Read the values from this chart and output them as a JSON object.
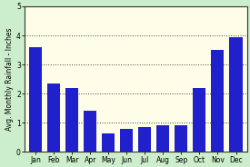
{
  "months": [
    "Jan",
    "Feb",
    "Mar",
    "Apr",
    "May",
    "Jun",
    "Jul",
    "Aug",
    "Sep",
    "Oct",
    "Nov",
    "Dec"
  ],
  "values": [
    3.6,
    2.35,
    2.2,
    1.4,
    0.65,
    0.8,
    0.85,
    0.9,
    0.9,
    2.2,
    3.5,
    3.95
  ],
  "bar_color": "#2020CC",
  "ylabel": "Avg. Monthly Rainfall - Inches",
  "ylim": [
    0,
    5
  ],
  "yticks": [
    0,
    1,
    2,
    3,
    4,
    5
  ],
  "plot_bg_color": "#FEFEE8",
  "fig_bg_color": "#CCEECC",
  "grid_color": "#444444",
  "spine_color": "#333333",
  "ylabel_fontsize": 5.5,
  "tick_fontsize": 5.5
}
